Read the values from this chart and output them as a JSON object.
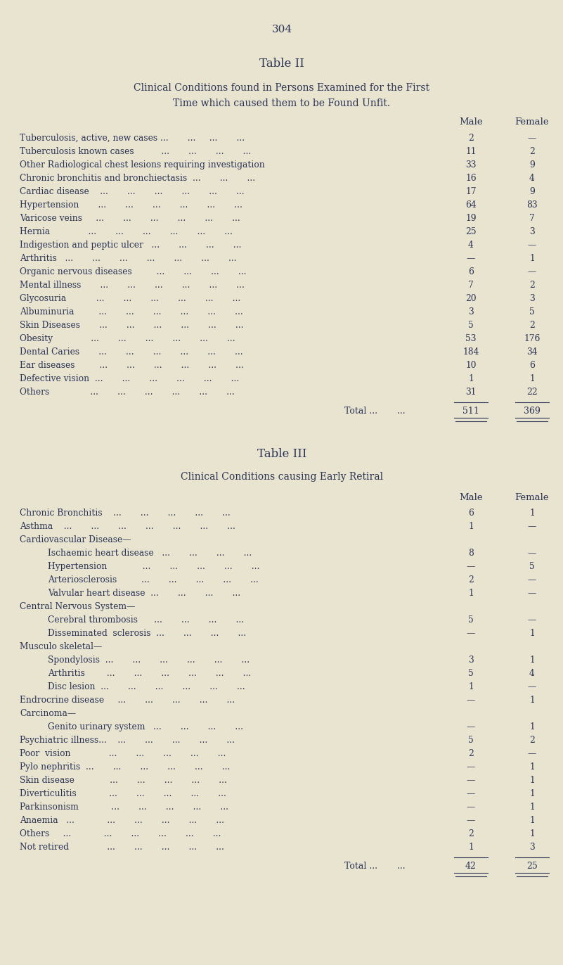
{
  "page_number": "304",
  "bg_color": "#e8e4d0",
  "text_color": "#2c3355",
  "table2": {
    "title1": "Table II",
    "title2": "Clinical Conditions found in Persons Examined for the First",
    "title3": "Time which caused them to be Found Unfit.",
    "rows": [
      {
        "label": "Tuberculosis, active, new cases ...       ...     ...       ...",
        "male": "2",
        "female": "—"
      },
      {
        "label": "Tuberculosis known cases          ...       ...       ...       ...",
        "male": "11",
        "female": "2"
      },
      {
        "label": "Other Radiological chest lesions requiring investigation",
        "male": "33",
        "female": "9"
      },
      {
        "label": "Chronic bronchitis and bronchiectasis  ...       ...       ...",
        "male": "16",
        "female": "4"
      },
      {
        "label": "Cardiac disease    ...       ...       ...       ...       ...       ...",
        "male": "17",
        "female": "9"
      },
      {
        "label": "Hypertension       ...       ...       ...       ...       ...       ...",
        "male": "64",
        "female": "83"
      },
      {
        "label": "Varicose veins     ...       ...       ...       ...       ...       ...",
        "male": "19",
        "female": "7"
      },
      {
        "label": "Hernia              ...       ...       ...       ...       ...       ...",
        "male": "25",
        "female": "3"
      },
      {
        "label": "Indigestion and peptic ulcer   ...       ...       ...       ...",
        "male": "4",
        "female": "—"
      },
      {
        "label": "Arthritis   ...       ...       ...       ...       ...       ...       ...",
        "male": "—",
        "female": "1"
      },
      {
        "label": "Organic nervous diseases         ...       ...       ...       ...",
        "male": "6",
        "female": "—"
      },
      {
        "label": "Mental illness       ...       ...       ...       ...       ...       ...",
        "male": "7",
        "female": "2"
      },
      {
        "label": "Glycosuria           ...       ...       ...       ...       ...       ...",
        "male": "20",
        "female": "3"
      },
      {
        "label": "Albuminuria         ...       ...       ...       ...       ...       ...",
        "male": "3",
        "female": "5"
      },
      {
        "label": "Skin Diseases       ...       ...       ...       ...       ...       ...",
        "male": "5",
        "female": "2"
      },
      {
        "label": "Obesity              ...       ...       ...       ...       ...       ...",
        "male": "53",
        "female": "176"
      },
      {
        "label": "Dental Caries       ...       ...       ...       ...       ...       ...",
        "male": "184",
        "female": "34"
      },
      {
        "label": "Ear diseases         ...       ...       ...       ...       ...       ...",
        "male": "10",
        "female": "6"
      },
      {
        "label": "Defective vision  ...       ...       ...       ...       ...       ...",
        "male": "1",
        "female": "1"
      },
      {
        "label": "Others               ...       ...       ...       ...       ...       ...",
        "male": "31",
        "female": "22"
      }
    ],
    "total_male": "511",
    "total_female": "369"
  },
  "table3": {
    "title1": "Table III",
    "title2": "Clinical Conditions causing Early Retiral",
    "rows": [
      {
        "label": "Chronic Bronchitis    ...       ...       ...       ...       ...",
        "male": "6",
        "female": "1",
        "indent": 0
      },
      {
        "label": "Asthma    ...       ...       ...       ...       ...       ...       ...",
        "male": "1",
        "female": "—",
        "indent": 0
      },
      {
        "label": "Cardiovascular Disease—",
        "male": "",
        "female": "",
        "indent": 0,
        "header": true
      },
      {
        "label": "Ischaemic heart disease   ...       ...       ...       ...",
        "male": "8",
        "female": "—",
        "indent": 1
      },
      {
        "label": "Hypertension             ...       ...       ...       ...       ...",
        "male": "—",
        "female": "5",
        "indent": 1
      },
      {
        "label": "Arteriosclerosis         ...       ...       ...       ...       ...",
        "male": "2",
        "female": "—",
        "indent": 1
      },
      {
        "label": "Valvular heart disease  ...       ...       ...       ...",
        "male": "1",
        "female": "—",
        "indent": 1
      },
      {
        "label": "Central Nervous System—",
        "male": "",
        "female": "",
        "indent": 0,
        "header": true
      },
      {
        "label": "Cerebral thrombosis      ...       ...       ...       ...",
        "male": "5",
        "female": "—",
        "indent": 1
      },
      {
        "label": "Disseminated  sclerosis  ...       ...       ...       ...",
        "male": "—",
        "female": "1",
        "indent": 1
      },
      {
        "label": "Musculo skeletal—",
        "male": "",
        "female": "",
        "indent": 0,
        "header": true
      },
      {
        "label": "Spondylosis  ...       ...       ...       ...       ...       ...",
        "male": "3",
        "female": "1",
        "indent": 1
      },
      {
        "label": "Arthritis        ...       ...       ...       ...       ...       ...",
        "male": "5",
        "female": "4",
        "indent": 1
      },
      {
        "label": "Disc lesion  ...       ...       ...       ...       ...       ...",
        "male": "1",
        "female": "—",
        "indent": 1
      },
      {
        "label": "Endrocrine disease     ...       ...       ...       ...       ...",
        "male": "—",
        "female": "1",
        "indent": 0
      },
      {
        "label": "Carcinoma—",
        "male": "",
        "female": "",
        "indent": 0,
        "header": true
      },
      {
        "label": "Genito urinary system   ...       ...       ...       ...",
        "male": "—",
        "female": "1",
        "indent": 1
      },
      {
        "label": "Psychiatric illness...    ...       ...       ...       ...       ...",
        "male": "5",
        "female": "2",
        "indent": 0
      },
      {
        "label": "Poor  vision              ...       ...       ...       ...       ...",
        "male": "2",
        "female": "—",
        "indent": 0
      },
      {
        "label": "Pylo nephritis  ...       ...       ...       ...       ...       ...",
        "male": "—",
        "female": "1",
        "indent": 0
      },
      {
        "label": "Skin disease             ...       ...       ...       ...       ...",
        "male": "—",
        "female": "1",
        "indent": 0
      },
      {
        "label": "Diverticulitis            ...       ...       ...       ...       ...",
        "male": "—",
        "female": "1",
        "indent": 0
      },
      {
        "label": "Parkinsonism            ...       ...       ...       ...       ...",
        "male": "—",
        "female": "1",
        "indent": 0
      },
      {
        "label": "Anaemia   ...            ...       ...       ...       ...       ...",
        "male": "—",
        "female": "1",
        "indent": 0
      },
      {
        "label": "Others     ...            ...       ...       ...       ...       ...",
        "male": "2",
        "female": "1",
        "indent": 0
      },
      {
        "label": "Not retired              ...       ...       ...       ...       ...",
        "male": "1",
        "female": "3",
        "indent": 0
      }
    ],
    "total_male": "42",
    "total_female": "25"
  }
}
